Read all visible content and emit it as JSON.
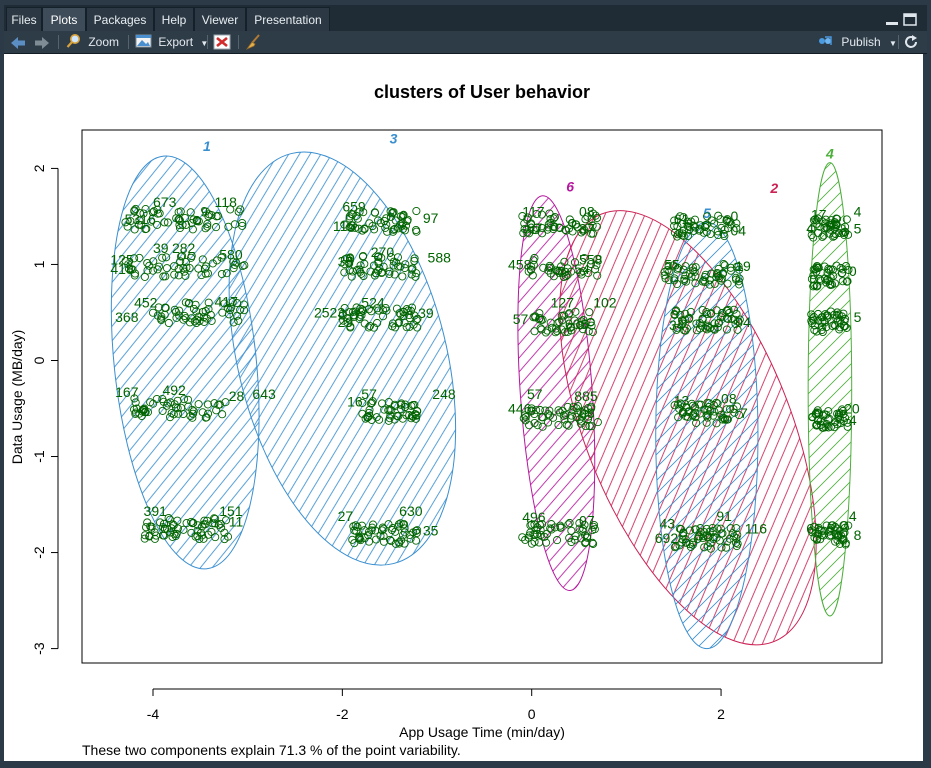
{
  "tabs": [
    {
      "label": "Files",
      "active": false
    },
    {
      "label": "Plots",
      "active": true
    },
    {
      "label": "Packages",
      "active": false
    },
    {
      "label": "Help",
      "active": false
    },
    {
      "label": "Viewer",
      "active": false
    },
    {
      "label": "Presentation",
      "active": false
    }
  ],
  "toolbar": {
    "zoom_label": "Zoom",
    "export_label": "Export",
    "publish_label": "Publish",
    "back_icon": "arrow-left-icon",
    "forward_icon": "arrow-right-icon",
    "zoom_icon": "magnifier-icon",
    "export_icon": "image-export-icon",
    "remove_icon": "remove-plot-icon",
    "clear_icon": "broom-icon",
    "publish_icon": "publish-icon",
    "refresh_icon": "refresh-icon"
  },
  "chart_data": {
    "type": "scatter",
    "title": "clusters of User behavior",
    "xlabel": "App Usage Time (min/day)",
    "ylabel": "Data Usage (MB/day)",
    "footer": "These two components explain 71.3 % of the point variability.",
    "xlim": [
      -4.75,
      3.7
    ],
    "ylim": [
      -3.15,
      2.4
    ],
    "xticks": [
      -4,
      -2,
      0,
      2
    ],
    "yticks": [
      -3,
      -2,
      -1,
      0,
      1,
      2
    ],
    "xtick_labels": [
      "-4",
      "-2",
      "0",
      "2"
    ],
    "ytick_labels": [
      "-3",
      "-2",
      "-1",
      "0",
      "1",
      "2"
    ],
    "point_color": "#006400",
    "clusters": [
      {
        "label": "1",
        "color": "#3a8fd0",
        "cx": -3.66,
        "cy": -0.02,
        "rx": 0.75,
        "ry": 2.16,
        "angle": 6
      },
      {
        "label": "3",
        "color": "#3a8fd0",
        "cx": -2.0,
        "cy": 0.02,
        "rx": 1.1,
        "ry": 2.2,
        "angle": 14
      },
      {
        "label": "6",
        "color": "#b5179e",
        "cx": 0.26,
        "cy": -0.34,
        "rx": 0.38,
        "ry": 2.06,
        "angle": 4
      },
      {
        "label": "2",
        "color": "#cc2255",
        "cx": 1.65,
        "cy": -0.7,
        "rx": 1.08,
        "ry": 2.4,
        "angle": 22
      },
      {
        "label": "5",
        "color": "#3a8fd0",
        "cx": 1.85,
        "cy": -0.78,
        "rx": 0.54,
        "ry": 2.22,
        "angle": 0
      },
      {
        "label": "4",
        "color": "#4caf3a",
        "cx": 3.15,
        "cy": -0.3,
        "rx": 0.23,
        "ry": 2.36,
        "angle": 0
      }
    ],
    "point_groups": [
      {
        "x0": -4.3,
        "x1": -3.0,
        "y": 1.47,
        "n": 60
      },
      {
        "x0": -4.3,
        "x1": -3.0,
        "y": 0.98,
        "n": 55
      },
      {
        "x0": -4.0,
        "x1": -3.0,
        "y": 0.5,
        "n": 55
      },
      {
        "x0": -4.2,
        "x1": -3.2,
        "y": -0.5,
        "n": 55
      },
      {
        "x0": -4.1,
        "x1": -3.2,
        "y": -1.75,
        "n": 65
      },
      {
        "x0": -2.0,
        "x1": -1.2,
        "y": 1.45,
        "n": 55
      },
      {
        "x0": -2.0,
        "x1": -1.2,
        "y": 0.98,
        "n": 55
      },
      {
        "x0": -2.0,
        "x1": -1.2,
        "y": 0.45,
        "n": 60
      },
      {
        "x0": -1.8,
        "x1": -1.2,
        "y": -0.52,
        "n": 50
      },
      {
        "x0": -1.9,
        "x1": -1.2,
        "y": -1.8,
        "n": 55
      },
      {
        "x0": -0.1,
        "x1": 0.7,
        "y": 1.43,
        "n": 55
      },
      {
        "x0": -0.1,
        "x1": 0.7,
        "y": 0.96,
        "n": 40
      },
      {
        "x0": 0.0,
        "x1": 0.65,
        "y": 0.4,
        "n": 45
      },
      {
        "x0": -0.1,
        "x1": 0.7,
        "y": -0.58,
        "n": 55
      },
      {
        "x0": -0.1,
        "x1": 0.7,
        "y": -1.8,
        "n": 55
      },
      {
        "x0": 1.5,
        "x1": 2.2,
        "y": 1.4,
        "n": 55
      },
      {
        "x0": 1.4,
        "x1": 2.2,
        "y": 0.9,
        "n": 60
      },
      {
        "x0": 1.5,
        "x1": 2.2,
        "y": 0.42,
        "n": 60
      },
      {
        "x0": 1.5,
        "x1": 2.2,
        "y": -0.55,
        "n": 55
      },
      {
        "x0": 1.5,
        "x1": 2.2,
        "y": -1.85,
        "n": 60
      },
      {
        "x0": 2.95,
        "x1": 3.35,
        "y": 1.38,
        "n": 45
      },
      {
        "x0": 2.95,
        "x1": 3.35,
        "y": 0.88,
        "n": 45
      },
      {
        "x0": 2.95,
        "x1": 3.35,
        "y": 0.4,
        "n": 45
      },
      {
        "x0": 2.95,
        "x1": 3.35,
        "y": -0.6,
        "n": 45
      },
      {
        "x0": 2.95,
        "x1": 3.35,
        "y": -1.82,
        "n": 45
      }
    ],
    "labels": [
      {
        "t": "673",
        "x": -4.0,
        "y": 1.6
      },
      {
        "t": "5316",
        "x": -4.3,
        "y": 1.42
      },
      {
        "t": "118",
        "x": -3.35,
        "y": 1.6
      },
      {
        "t": "9",
        "x": -3.5,
        "y": 1.5
      },
      {
        "t": "39",
        "x": -4.0,
        "y": 1.12
      },
      {
        "t": "125",
        "x": -4.45,
        "y": 1.0
      },
      {
        "t": "418",
        "x": -4.45,
        "y": 0.9
      },
      {
        "t": "282",
        "x": -3.8,
        "y": 1.12
      },
      {
        "t": "580",
        "x": -3.3,
        "y": 1.05
      },
      {
        "t": "452",
        "x": -4.2,
        "y": 0.55
      },
      {
        "t": "368",
        "x": -4.4,
        "y": 0.4
      },
      {
        "t": "417",
        "x": -3.35,
        "y": 0.56
      },
      {
        "t": "167",
        "x": -4.4,
        "y": -0.38
      },
      {
        "t": "492",
        "x": -3.9,
        "y": -0.36
      },
      {
        "t": "28",
        "x": -3.2,
        "y": -0.42
      },
      {
        "t": "643",
        "x": -2.95,
        "y": -0.4
      },
      {
        "t": "391",
        "x": -4.1,
        "y": -1.62
      },
      {
        "t": "151",
        "x": -3.3,
        "y": -1.62
      },
      {
        "t": "11",
        "x": -3.2,
        "y": -1.73
      },
      {
        "t": "659",
        "x": -2.0,
        "y": 1.55
      },
      {
        "t": "115",
        "x": -2.1,
        "y": 1.35
      },
      {
        "t": "97",
        "x": -1.15,
        "y": 1.43
      },
      {
        "t": "33",
        "x": -2.05,
        "y": 0.98
      },
      {
        "t": "270",
        "x": -1.7,
        "y": 1.08
      },
      {
        "t": "588",
        "x": -1.1,
        "y": 1.02
      },
      {
        "t": "2523",
        "x": -2.3,
        "y": 0.45
      },
      {
        "t": "29",
        "x": -2.05,
        "y": 0.35
      },
      {
        "t": "524",
        "x": -1.8,
        "y": 0.55
      },
      {
        "t": "39",
        "x": -1.2,
        "y": 0.44
      },
      {
        "t": "57",
        "x": -1.8,
        "y": -0.4
      },
      {
        "t": "248",
        "x": -1.05,
        "y": -0.4
      },
      {
        "t": "16",
        "x": -1.95,
        "y": -0.48
      },
      {
        "t": "27",
        "x": -2.05,
        "y": -1.67
      },
      {
        "t": "630",
        "x": -1.4,
        "y": -1.62
      },
      {
        "t": "35",
        "x": -1.15,
        "y": -1.82
      },
      {
        "t": "117",
        "x": -0.1,
        "y": 1.5
      },
      {
        "t": "08",
        "x": 0.5,
        "y": 1.5
      },
      {
        "t": "67",
        "x": -0.05,
        "y": 1.33
      },
      {
        "t": "37",
        "x": 0.5,
        "y": 1.32
      },
      {
        "t": "458",
        "x": -0.25,
        "y": 0.95
      },
      {
        "t": "558",
        "x": 0.5,
        "y": 1.0
      },
      {
        "t": "54",
        "x": 0.45,
        "y": 0.9
      },
      {
        "t": "127",
        "x": 0.2,
        "y": 0.55
      },
      {
        "t": "102",
        "x": 0.65,
        "y": 0.55
      },
      {
        "t": "57",
        "x": -0.2,
        "y": 0.38
      },
      {
        "t": "605",
        "x": 0.35,
        "y": 0.33
      },
      {
        "t": "57",
        "x": -0.05,
        "y": -0.4
      },
      {
        "t": "885",
        "x": 0.45,
        "y": -0.42
      },
      {
        "t": "446",
        "x": -0.25,
        "y": -0.55
      },
      {
        "t": "08",
        "x": 0.5,
        "y": -0.6
      },
      {
        "t": "496",
        "x": -0.1,
        "y": -1.68
      },
      {
        "t": "07",
        "x": 0.5,
        "y": -1.72
      },
      {
        "t": "61",
        "x": 1.5,
        "y": 1.42
      },
      {
        "t": "0",
        "x": 2.1,
        "y": 1.45
      },
      {
        "t": "04",
        "x": 2.1,
        "y": 1.3
      },
      {
        "t": "55",
        "x": 1.4,
        "y": 0.95
      },
      {
        "t": "19",
        "x": 2.15,
        "y": 0.93
      },
      {
        "t": "34",
        "x": 1.45,
        "y": 0.32
      },
      {
        "t": "04",
        "x": 2.15,
        "y": 0.35
      },
      {
        "t": "13",
        "x": 1.5,
        "y": -0.47
      },
      {
        "t": "08",
        "x": 2.0,
        "y": -0.45
      },
      {
        "t": "7",
        "x": 2.2,
        "y": -0.6
      },
      {
        "t": "43",
        "x": 1.35,
        "y": -1.75
      },
      {
        "t": "692",
        "x": 1.3,
        "y": -1.9
      },
      {
        "t": "91",
        "x": 1.95,
        "y": -1.67
      },
      {
        "t": "116",
        "x": 2.25,
        "y": -1.8
      },
      {
        "t": "17",
        "x": 2.95,
        "y": 1.47
      },
      {
        "t": "4",
        "x": 3.4,
        "y": 1.5
      },
      {
        "t": "4",
        "x": 2.9,
        "y": 1.33
      },
      {
        "t": "5",
        "x": 3.4,
        "y": 1.32
      },
      {
        "t": "0",
        "x": 3.35,
        "y": 0.88
      },
      {
        "t": "5",
        "x": 3.4,
        "y": 0.4
      },
      {
        "t": "20",
        "x": 3.3,
        "y": -0.55
      },
      {
        "t": "4",
        "x": 3.35,
        "y": -0.67
      },
      {
        "t": "4",
        "x": 3.35,
        "y": -1.67
      },
      {
        "t": "61",
        "x": 2.9,
        "y": -1.8
      },
      {
        "t": "8",
        "x": 3.4,
        "y": -1.87
      }
    ]
  }
}
